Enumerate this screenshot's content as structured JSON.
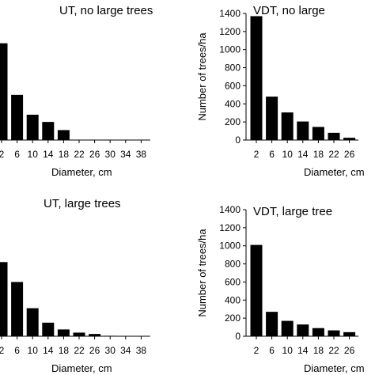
{
  "chart_data": [
    {
      "type": "bar",
      "title": "UT, no large trees",
      "xlabel": "Diameter, cm",
      "ylabel": "",
      "ylim": [
        0,
        1400
      ],
      "categories": [
        "2",
        "6",
        "10",
        "14",
        "18",
        "22",
        "26",
        "30",
        "34",
        "38"
      ],
      "values": [
        1070,
        500,
        280,
        200,
        110,
        0,
        0,
        0,
        0,
        0
      ],
      "show_yaxis": false
    },
    {
      "type": "bar",
      "title": "VDT, no large",
      "xlabel": "Diameter, cm",
      "ylabel": "Number of trees/ha",
      "ylim": [
        0,
        1400
      ],
      "yticks": [
        "0",
        "200",
        "400",
        "600",
        "800",
        "1000",
        "1200",
        "1400"
      ],
      "categories": [
        "2",
        "6",
        "10",
        "14",
        "18",
        "22",
        "26"
      ],
      "values": [
        1370,
        480,
        305,
        205,
        145,
        80,
        25
      ],
      "show_yaxis": true
    },
    {
      "type": "bar",
      "title": "UT, large trees",
      "xlabel": "Diameter, cm",
      "ylabel": "",
      "ylim": [
        0,
        1400
      ],
      "categories": [
        "2",
        "6",
        "10",
        "14",
        "18",
        "22",
        "26",
        "30",
        "34",
        "38"
      ],
      "values": [
        820,
        600,
        310,
        150,
        75,
        40,
        25,
        5,
        0,
        0
      ],
      "show_yaxis": false
    },
    {
      "type": "bar",
      "title": "VDT, large tree",
      "xlabel": "Diameter, cm",
      "ylabel": "Number of trees/ha",
      "ylim": [
        0,
        1400
      ],
      "yticks": [
        "0",
        "200",
        "400",
        "600",
        "800",
        "1000",
        "1200",
        "1400"
      ],
      "categories": [
        "2",
        "6",
        "10",
        "14",
        "18",
        "22",
        "26"
      ],
      "values": [
        1010,
        270,
        170,
        130,
        90,
        65,
        45
      ],
      "show_yaxis": true
    }
  ]
}
